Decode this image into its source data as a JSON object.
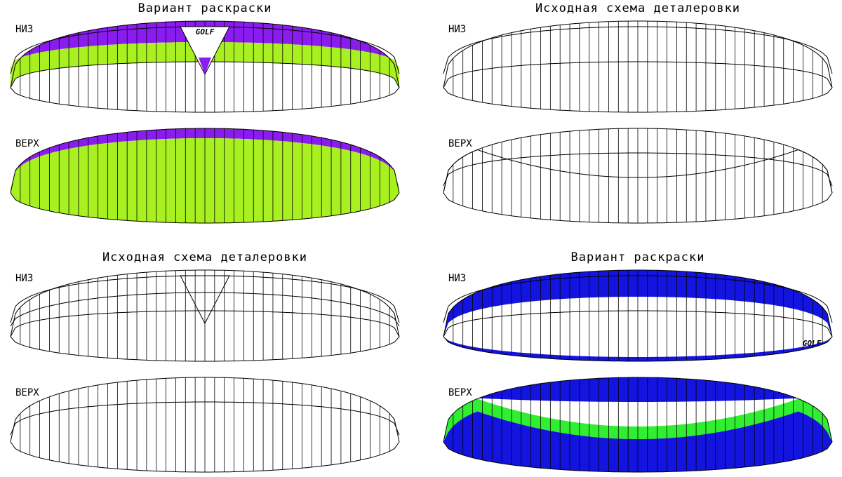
{
  "panels": [
    {
      "title": "Вариант раскраски",
      "views": [
        {
          "label": "НИЗ",
          "logo": "GOLF"
        },
        {
          "label": "ВЕРХ"
        }
      ]
    },
    {
      "title": "Исходная схема деталеровки",
      "views": [
        {
          "label": "НИЗ"
        },
        {
          "label": "ВЕРХ"
        }
      ]
    },
    {
      "title": "Исходная схема деталеровки",
      "views": [
        {
          "label": "НИЗ"
        },
        {
          "label": "ВЕРХ"
        }
      ]
    },
    {
      "title": "Вариант раскраски",
      "views": [
        {
          "label": "НИЗ",
          "logo": "GOLF"
        },
        {
          "label": "ВЕРХ"
        }
      ]
    }
  ]
}
